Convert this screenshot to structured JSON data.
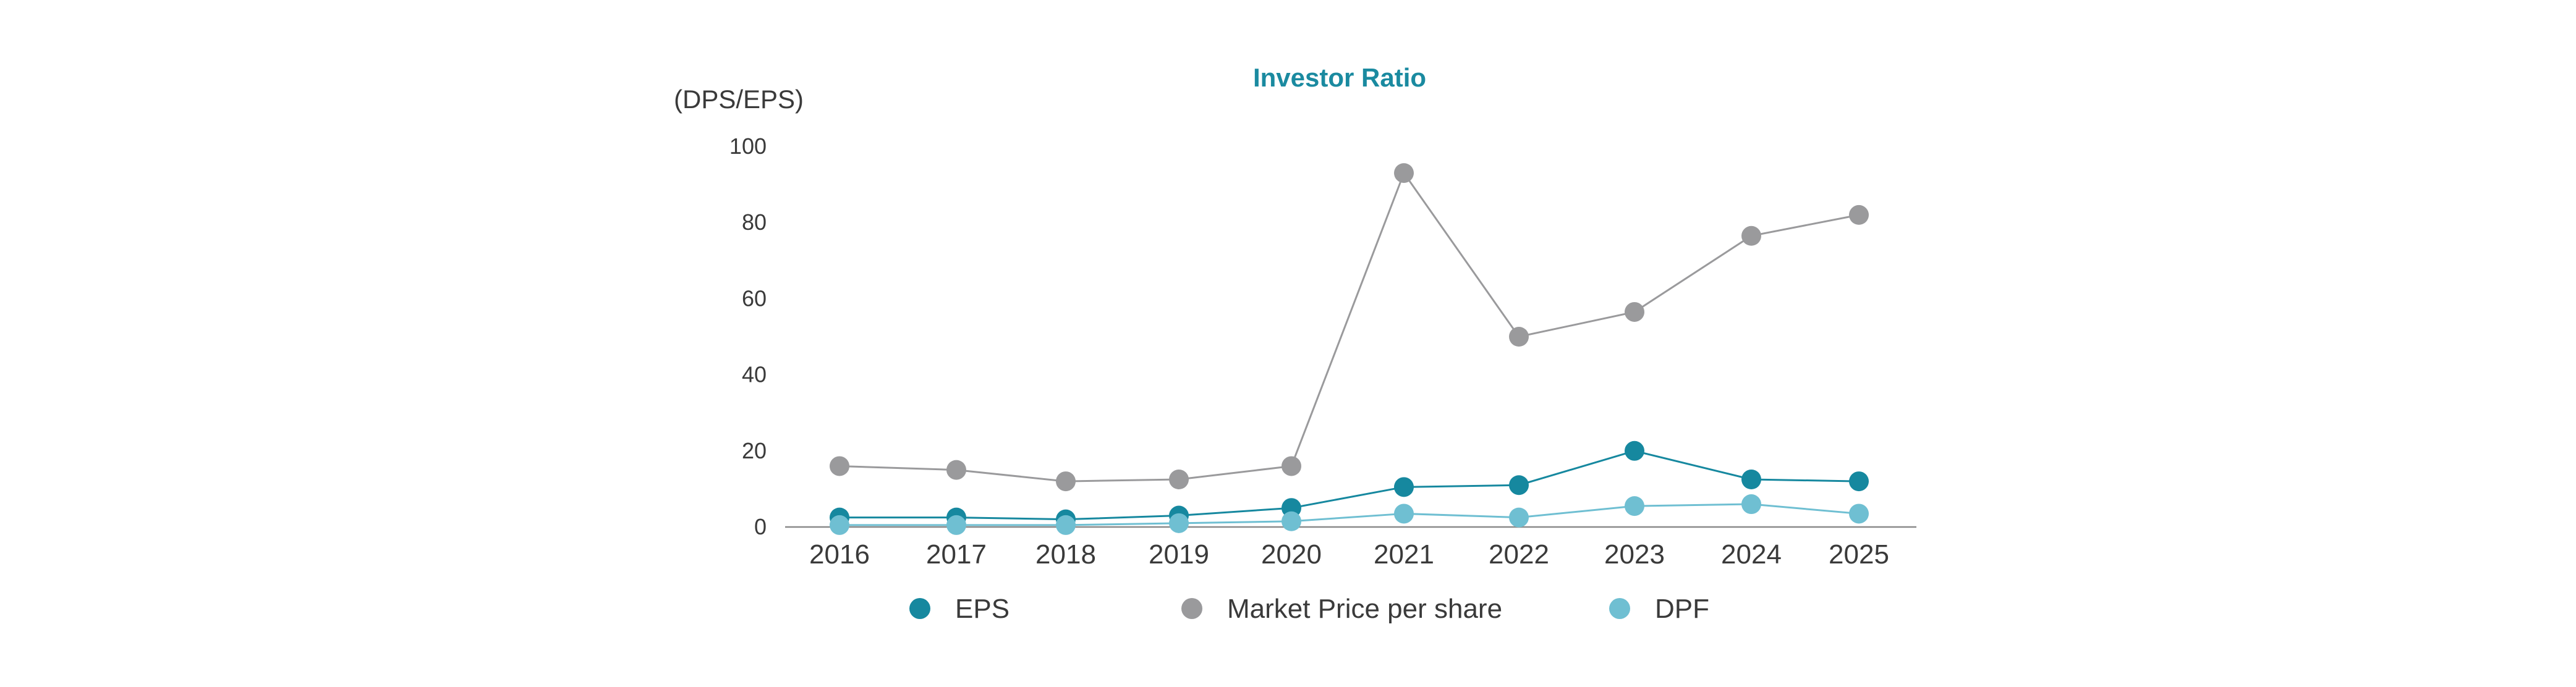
{
  "chart_data": {
    "type": "line",
    "title": "Investor Ratio",
    "y_unit_label": "(DPS/EPS)",
    "xlabel": "",
    "ylabel": "",
    "categories": [
      "2016",
      "2017",
      "2018",
      "2019",
      "2020",
      "2021",
      "2022",
      "2023",
      "2024",
      "2025"
    ],
    "ylim": [
      0,
      100
    ],
    "yticks": [
      "0",
      "20",
      "40",
      "60",
      "80",
      "100"
    ],
    "grid": false,
    "legend_position": "bottom",
    "series": [
      {
        "name": "EPS",
        "color": "#16889f",
        "values": [
          2.5,
          2.5,
          2.0,
          3.0,
          5.0,
          10.5,
          11.0,
          20.0,
          12.5,
          12.0
        ]
      },
      {
        "name": "Market Price per share",
        "color": "#9a9a9c",
        "values": [
          16.0,
          15.0,
          12.0,
          12.5,
          16.0,
          93.0,
          50.0,
          56.5,
          76.5,
          82.0
        ]
      },
      {
        "name": "DPF",
        "color": "#6fbfd2",
        "values": [
          0.5,
          0.5,
          0.5,
          1.0,
          1.5,
          3.5,
          2.5,
          5.5,
          6.0,
          3.5
        ]
      }
    ],
    "title_color": "#1a8aa0",
    "axis_color": "#8a8a8a"
  }
}
